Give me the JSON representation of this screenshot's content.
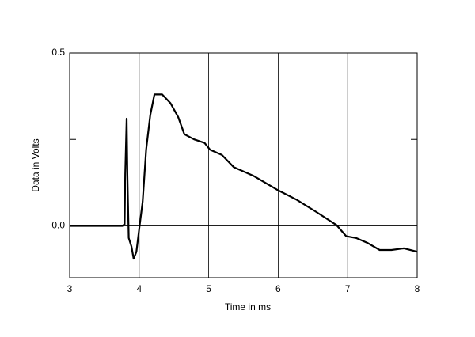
{
  "chart_data": {
    "type": "line",
    "x_label": "Time in ms",
    "y_label": "Data in Volts",
    "x": [
      3,
      3.76,
      3.79,
      3.8,
      3.82,
      3.83,
      3.85,
      3.89,
      3.92,
      3.96,
      4.0,
      4.05,
      4.1,
      4.16,
      4.22,
      4.33,
      4.45,
      4.56,
      4.65,
      4.79,
      4.94,
      5.02,
      5.19,
      5.36,
      5.64,
      5.98,
      6.27,
      6.55,
      6.84,
      6.98,
      7.12,
      7.29,
      7.46,
      7.63,
      7.81,
      8.0
    ],
    "values": [
      0,
      0,
      0.005,
      0.15,
      0.31,
      0.15,
      -0.035,
      -0.06,
      -0.095,
      -0.075,
      -0.01,
      0.07,
      0.22,
      0.32,
      0.38,
      0.38,
      0.355,
      0.315,
      0.265,
      0.25,
      0.24,
      0.22,
      0.205,
      0.17,
      0.145,
      0.105,
      0.075,
      0.04,
      0.002,
      -0.03,
      -0.035,
      -0.05,
      -0.07,
      -0.07,
      -0.065,
      -0.075
    ],
    "color": "#000000",
    "xlim": [
      3,
      8
    ],
    "xticks": [
      3,
      4,
      5,
      6,
      7,
      8
    ],
    "ylim": [
      -0.15,
      0.5
    ],
    "yticks": [
      {
        "value": 0,
        "label": "0.0"
      },
      0.5
    ],
    "minor_yticks": [
      0.25
    ],
    "grid": true
  }
}
